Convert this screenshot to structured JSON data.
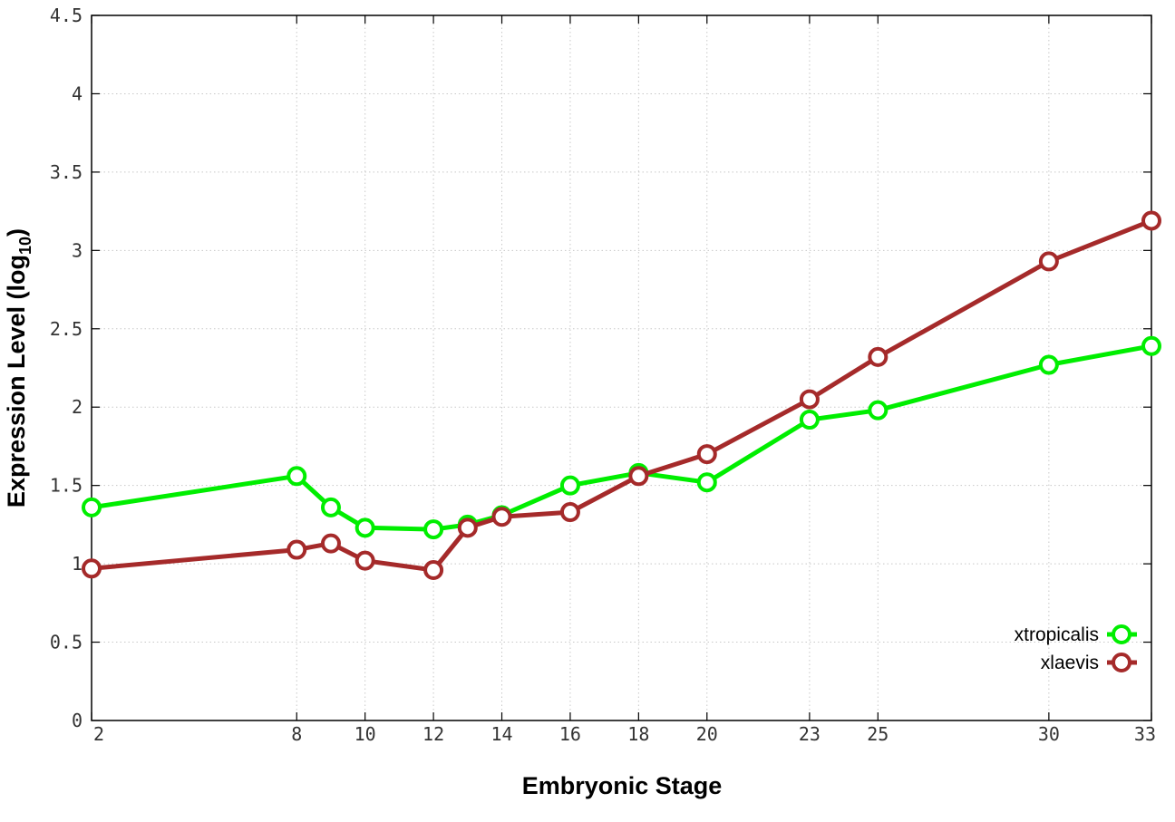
{
  "chart_data": {
    "type": "line",
    "title": "",
    "xlabel": "Embryonic Stage",
    "ylabel": {
      "main": "Expression Level (log",
      "subscript": "10",
      "close": ")"
    },
    "x": [
      2,
      8,
      9,
      10,
      12,
      13,
      14,
      16,
      18,
      20,
      23,
      25,
      30,
      33
    ],
    "xticks": [
      2,
      8,
      10,
      12,
      14,
      16,
      18,
      20,
      23,
      25,
      30,
      33
    ],
    "yticks": [
      "0",
      "0.5",
      "1",
      "1.5",
      "2",
      "2.5",
      "3",
      "3.5",
      "4",
      "4.5"
    ],
    "xlim": [
      2,
      33
    ],
    "ylim": [
      0,
      4.5
    ],
    "grid": true,
    "legend_position": "bottom-right",
    "series": [
      {
        "name": "xtropicalis",
        "color": "#00ee00",
        "values": [
          1.36,
          1.56,
          1.36,
          1.23,
          1.22,
          1.25,
          1.31,
          1.5,
          1.58,
          1.52,
          1.92,
          1.98,
          2.27,
          2.39
        ]
      },
      {
        "name": "xlaevis",
        "color": "#a52a2a",
        "values": [
          0.97,
          1.09,
          1.13,
          1.02,
          0.96,
          1.23,
          1.3,
          1.33,
          1.56,
          1.7,
          2.05,
          2.32,
          2.93,
          3.19
        ]
      }
    ]
  }
}
